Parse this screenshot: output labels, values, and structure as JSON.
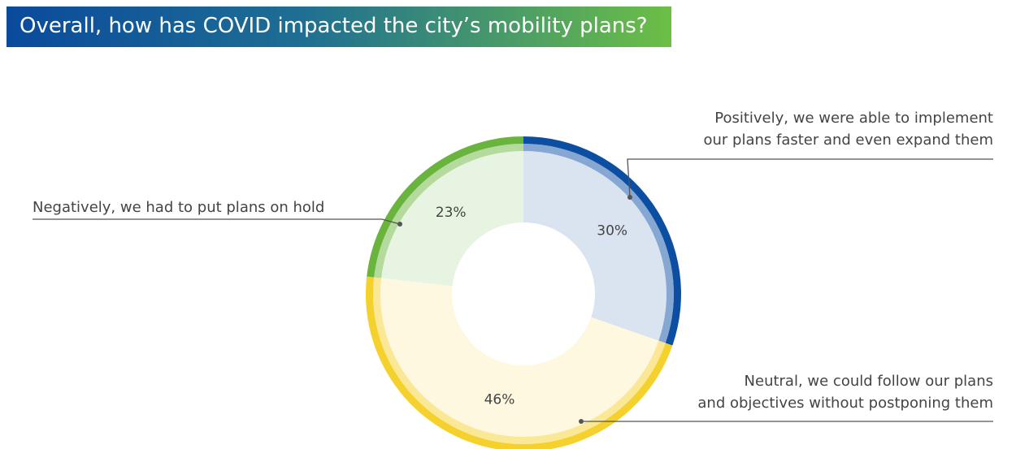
{
  "chart_data": {
    "type": "donut",
    "title": "Overall, how has COVID impacted the city’s mobility plans?",
    "categories": [
      "Positively, we were able to implement\nour plans faster and even expand them",
      "Neutral, we could follow our plans\nand objectives without postponing them",
      "Negatively, we had to put plans on hold"
    ],
    "values": [
      30,
      46,
      23
    ],
    "value_labels": [
      "30%",
      "46%",
      "23%"
    ],
    "colors": [
      "#0b4ea2",
      "#f4d12c",
      "#68b43c"
    ]
  }
}
